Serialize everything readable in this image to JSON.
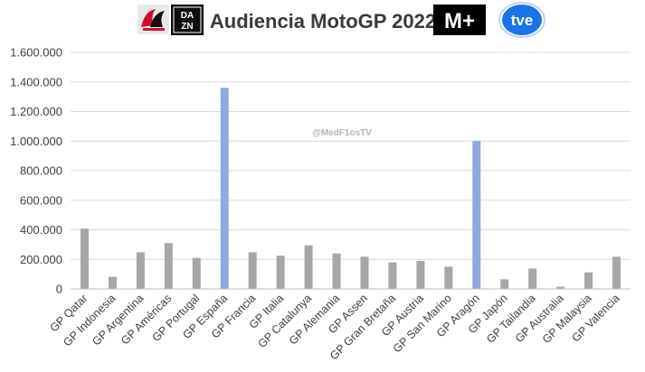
{
  "header": {
    "title": "Audiencia MotoGP 2022",
    "logos": {
      "motogp": {
        "name": "motogp-logo",
        "colors": [
          "#c8102e",
          "#111111",
          "#e6e6e6"
        ]
      },
      "dazn": {
        "name": "dazn-logo",
        "text_top": "DA",
        "text_bottom": "ZN",
        "color": "#0c0c0c"
      },
      "movistar": {
        "name": "movistar-plus-logo",
        "text": "M+",
        "color": "#000000"
      },
      "tve": {
        "name": "tve-logo",
        "text": "tve",
        "color": "#1a73e8"
      }
    }
  },
  "chart_data": {
    "type": "bar",
    "title": "Audiencia MotoGP 2022",
    "categories": [
      "GP Qatar",
      "GP Indonesia",
      "GP Argentina",
      "GP Américas",
      "GP Portugal",
      "GP España",
      "GP Francia",
      "GP Italia",
      "GP Catalunya",
      "GP Alemania",
      "GP Assen",
      "GP Gran Bretaña",
      "GP Austria",
      "GP San Marino",
      "GP Aragón",
      "GP Japón",
      "GP Tailandia",
      "GP Australia",
      "GP Malaysia",
      "GP Valencia"
    ],
    "series": [
      {
        "values": [
          408000,
          82000,
          248000,
          310000,
          210000,
          1360000,
          248000,
          225000,
          295000,
          240000,
          218000,
          180000,
          190000,
          150000,
          1000000,
          65000,
          138000,
          15000,
          112000,
          218000
        ]
      }
    ],
    "highlight_indices": [
      5,
      14
    ],
    "colors": {
      "default": "#a6a6a6",
      "highlight": "#8eaadb"
    },
    "ylim": [
      0,
      1600000
    ],
    "yticks": [
      0,
      200000,
      400000,
      600000,
      800000,
      1000000,
      1200000,
      1400000,
      1600000
    ],
    "ytick_labels": [
      "0",
      "200.000",
      "400.000",
      "600.000",
      "800.000",
      "1.000.000",
      "1.200.000",
      "1.400.000",
      "1.600.000"
    ],
    "grid": true,
    "xlabel": "",
    "ylabel": "",
    "annotation": "@MedF1osTV"
  }
}
